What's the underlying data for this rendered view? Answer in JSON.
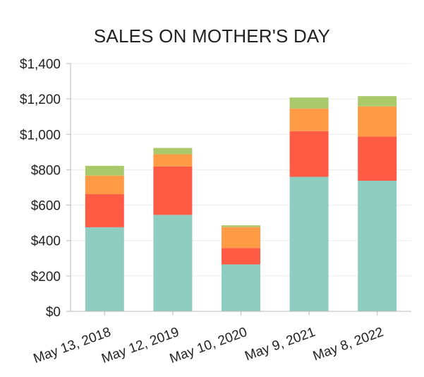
{
  "chart_data": {
    "type": "bar",
    "stacked": true,
    "title": "SALES ON MOTHER'S DAY",
    "xlabel": "",
    "ylabel": "",
    "ylim": [
      0,
      1400
    ],
    "yticks": [
      0,
      200,
      400,
      600,
      800,
      1000,
      1200,
      1400
    ],
    "ytick_labels": [
      "$0",
      "$200",
      "$400",
      "$600",
      "$800",
      "$1,000",
      "$1,200",
      "$1,400"
    ],
    "categories": [
      "May 13, 2018",
      "May 12, 2019",
      "May 10, 2020",
      "May 9, 2021",
      "May 8, 2022"
    ],
    "grid": true,
    "legend": "none",
    "series": [
      {
        "color": "#8ecdbf",
        "values": [
          475,
          545,
          265,
          760,
          738
        ]
      },
      {
        "color": "#ff5a44",
        "values": [
          187,
          273,
          93,
          258,
          250
        ]
      },
      {
        "color": "#ff9a45",
        "values": [
          105,
          70,
          118,
          128,
          170
        ]
      },
      {
        "color": "#a9c96b",
        "values": [
          55,
          35,
          10,
          62,
          58
        ]
      }
    ]
  }
}
